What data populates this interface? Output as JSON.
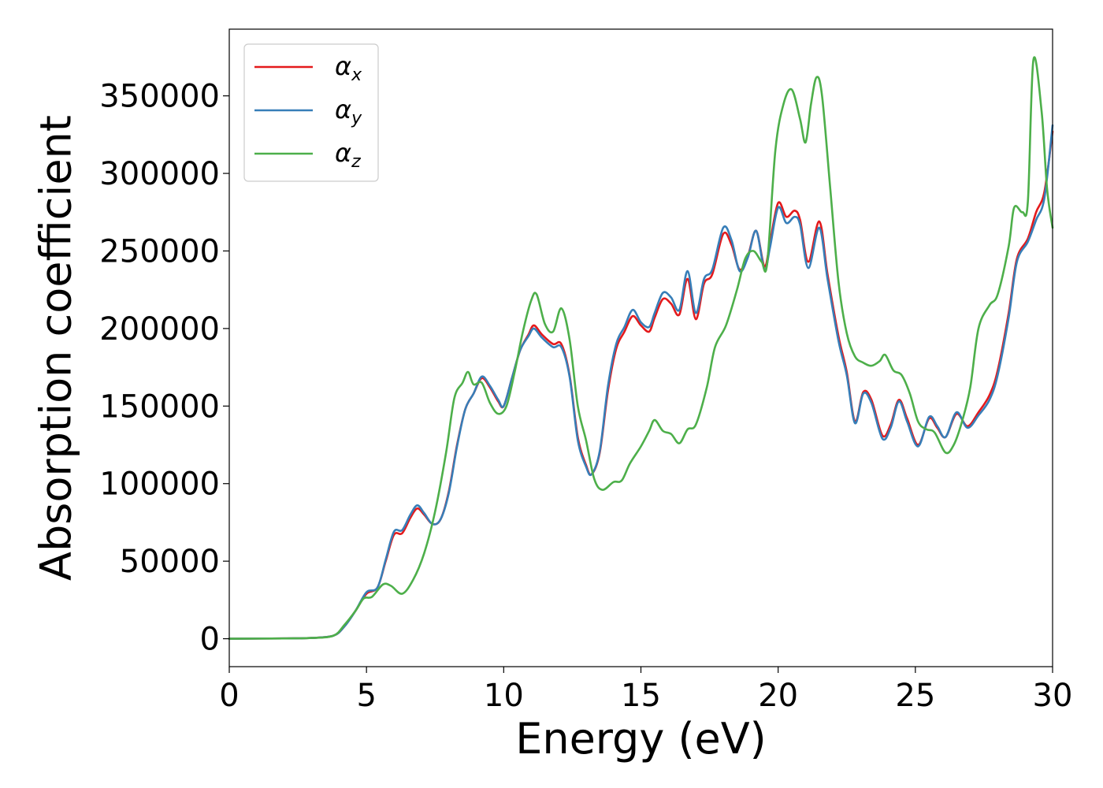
{
  "chart_data": {
    "type": "line",
    "title": "",
    "xlabel": "Energy (eV)",
    "ylabel": "Absorption coefficient",
    "xlim": [
      0,
      30
    ],
    "ylim": [
      -18000,
      393000
    ],
    "xticks": [
      0,
      5,
      10,
      15,
      20,
      25,
      30
    ],
    "yticks": [
      0,
      50000,
      100000,
      150000,
      200000,
      250000,
      300000,
      350000
    ],
    "grid": false,
    "legend_position": "top-left",
    "series": [
      {
        "name": "α_x",
        "label_main": "α",
        "label_sub": "x",
        "color": "#e41a1c",
        "points": [
          [
            0,
            0
          ],
          [
            2,
            200
          ],
          [
            3,
            500
          ],
          [
            3.8,
            2000
          ],
          [
            4.2,
            8000
          ],
          [
            4.6,
            18000
          ],
          [
            5,
            29000
          ],
          [
            5.4,
            33000
          ],
          [
            5.7,
            50000
          ],
          [
            6,
            67000
          ],
          [
            6.3,
            68000
          ],
          [
            6.6,
            78000
          ],
          [
            6.85,
            84000
          ],
          [
            7.1,
            80000
          ],
          [
            7.4,
            74000
          ],
          [
            7.7,
            77000
          ],
          [
            8,
            95000
          ],
          [
            8.3,
            125000
          ],
          [
            8.6,
            148000
          ],
          [
            8.9,
            158000
          ],
          [
            9.2,
            168000
          ],
          [
            9.5,
            162000
          ],
          [
            9.8,
            153000
          ],
          [
            10,
            150000
          ],
          [
            10.3,
            168000
          ],
          [
            10.6,
            186000
          ],
          [
            10.9,
            196000
          ],
          [
            11.1,
            202000
          ],
          [
            11.4,
            196000
          ],
          [
            11.8,
            190000
          ],
          [
            12.1,
            190000
          ],
          [
            12.4,
            170000
          ],
          [
            12.7,
            130000
          ],
          [
            13,
            112000
          ],
          [
            13.2,
            106000
          ],
          [
            13.5,
            120000
          ],
          [
            13.8,
            160000
          ],
          [
            14.1,
            187000
          ],
          [
            14.4,
            198000
          ],
          [
            14.7,
            208000
          ],
          [
            15,
            202000
          ],
          [
            15.3,
            198000
          ],
          [
            15.5,
            207000
          ],
          [
            15.8,
            219000
          ],
          [
            16.1,
            216000
          ],
          [
            16.4,
            209000
          ],
          [
            16.7,
            232000
          ],
          [
            17,
            206000
          ],
          [
            17.3,
            229000
          ],
          [
            17.6,
            235000
          ],
          [
            18,
            261000
          ],
          [
            18.3,
            254000
          ],
          [
            18.6,
            238000
          ],
          [
            18.9,
            247000
          ],
          [
            19.2,
            263000
          ],
          [
            19.5,
            240000
          ],
          [
            19.7,
            255000
          ],
          [
            20,
            281000
          ],
          [
            20.3,
            272000
          ],
          [
            20.6,
            276000
          ],
          [
            20.8,
            270000
          ],
          [
            21.1,
            243000
          ],
          [
            21.5,
            269000
          ],
          [
            21.8,
            235000
          ],
          [
            22.2,
            195000
          ],
          [
            22.5,
            172000
          ],
          [
            22.8,
            140000
          ],
          [
            23.1,
            159000
          ],
          [
            23.4,
            154000
          ],
          [
            23.8,
            131000
          ],
          [
            24.1,
            138000
          ],
          [
            24.4,
            154000
          ],
          [
            24.7,
            142000
          ],
          [
            25.1,
            125000
          ],
          [
            25.5,
            142000
          ],
          [
            25.8,
            136000
          ],
          [
            26.1,
            130000
          ],
          [
            26.5,
            145000
          ],
          [
            26.9,
            137000
          ],
          [
            27.3,
            146000
          ],
          [
            27.7,
            157000
          ],
          [
            28,
            173000
          ],
          [
            28.4,
            210000
          ],
          [
            28.7,
            245000
          ],
          [
            29.1,
            258000
          ],
          [
            29.4,
            275000
          ],
          [
            29.7,
            288000
          ],
          [
            30,
            327000
          ]
        ]
      },
      {
        "name": "α_y",
        "label_main": "α",
        "label_sub": "y",
        "color": "#377eb8",
        "points": [
          [
            0,
            0
          ],
          [
            2,
            200
          ],
          [
            3,
            500
          ],
          [
            3.8,
            2000
          ],
          [
            4.2,
            8000
          ],
          [
            4.6,
            18000
          ],
          [
            5,
            30000
          ],
          [
            5.4,
            33000
          ],
          [
            5.7,
            51000
          ],
          [
            6,
            69000
          ],
          [
            6.3,
            70000
          ],
          [
            6.6,
            80000
          ],
          [
            6.85,
            86000
          ],
          [
            7.1,
            81000
          ],
          [
            7.4,
            74000
          ],
          [
            7.7,
            77000
          ],
          [
            8,
            94000
          ],
          [
            8.3,
            124000
          ],
          [
            8.6,
            148000
          ],
          [
            8.9,
            158000
          ],
          [
            9.2,
            169000
          ],
          [
            9.5,
            163000
          ],
          [
            9.8,
            154000
          ],
          [
            10,
            150000
          ],
          [
            10.3,
            168000
          ],
          [
            10.6,
            186000
          ],
          [
            10.9,
            195000
          ],
          [
            11.1,
            200000
          ],
          [
            11.4,
            194000
          ],
          [
            11.8,
            188000
          ],
          [
            12.1,
            188000
          ],
          [
            12.4,
            169000
          ],
          [
            12.7,
            128000
          ],
          [
            13,
            111000
          ],
          [
            13.2,
            106000
          ],
          [
            13.5,
            121000
          ],
          [
            13.8,
            163000
          ],
          [
            14.1,
            190000
          ],
          [
            14.4,
            201000
          ],
          [
            14.7,
            212000
          ],
          [
            15,
            204000
          ],
          [
            15.3,
            201000
          ],
          [
            15.5,
            210000
          ],
          [
            15.8,
            223000
          ],
          [
            16.1,
            220000
          ],
          [
            16.4,
            212000
          ],
          [
            16.7,
            237000
          ],
          [
            17,
            210000
          ],
          [
            17.3,
            232000
          ],
          [
            17.6,
            238000
          ],
          [
            18,
            265000
          ],
          [
            18.3,
            257000
          ],
          [
            18.6,
            237000
          ],
          [
            18.9,
            246000
          ],
          [
            19.2,
            263000
          ],
          [
            19.5,
            238000
          ],
          [
            19.7,
            252000
          ],
          [
            20,
            278000
          ],
          [
            20.3,
            268000
          ],
          [
            20.6,
            272000
          ],
          [
            20.8,
            267000
          ],
          [
            21.1,
            239000
          ],
          [
            21.5,
            265000
          ],
          [
            21.8,
            232000
          ],
          [
            22.2,
            192000
          ],
          [
            22.5,
            170000
          ],
          [
            22.8,
            139000
          ],
          [
            23.1,
            158000
          ],
          [
            23.4,
            152000
          ],
          [
            23.8,
            129000
          ],
          [
            24.1,
            136000
          ],
          [
            24.4,
            153000
          ],
          [
            24.7,
            140000
          ],
          [
            25.1,
            124000
          ],
          [
            25.5,
            143000
          ],
          [
            25.8,
            137000
          ],
          [
            26.1,
            130000
          ],
          [
            26.5,
            146000
          ],
          [
            26.9,
            136000
          ],
          [
            27.3,
            144000
          ],
          [
            27.7,
            154000
          ],
          [
            28,
            170000
          ],
          [
            28.4,
            207000
          ],
          [
            28.7,
            243000
          ],
          [
            29.1,
            256000
          ],
          [
            29.4,
            270000
          ],
          [
            29.7,
            284000
          ],
          [
            30,
            331000
          ]
        ]
      },
      {
        "name": "α_z",
        "label_main": "α",
        "label_sub": "z",
        "color": "#4daf4a",
        "points": [
          [
            0,
            0
          ],
          [
            2,
            200
          ],
          [
            3,
            500
          ],
          [
            3.8,
            2000
          ],
          [
            4.2,
            9000
          ],
          [
            4.6,
            18000
          ],
          [
            4.9,
            26000
          ],
          [
            5.2,
            27000
          ],
          [
            5.6,
            35000
          ],
          [
            5.9,
            34000
          ],
          [
            6.3,
            29000
          ],
          [
            6.7,
            38000
          ],
          [
            7.1,
            55000
          ],
          [
            7.5,
            82000
          ],
          [
            7.9,
            120000
          ],
          [
            8.2,
            155000
          ],
          [
            8.5,
            165000
          ],
          [
            8.7,
            172000
          ],
          [
            8.9,
            164000
          ],
          [
            9.2,
            165000
          ],
          [
            9.5,
            152000
          ],
          [
            9.8,
            145000
          ],
          [
            10.1,
            150000
          ],
          [
            10.4,
            172000
          ],
          [
            10.7,
            198000
          ],
          [
            11,
            218000
          ],
          [
            11.2,
            222000
          ],
          [
            11.5,
            203000
          ],
          [
            11.8,
            198000
          ],
          [
            12.1,
            213000
          ],
          [
            12.4,
            193000
          ],
          [
            12.7,
            150000
          ],
          [
            13,
            128000
          ],
          [
            13.3,
            103000
          ],
          [
            13.6,
            96000
          ],
          [
            14,
            101000
          ],
          [
            14.3,
            102000
          ],
          [
            14.6,
            113000
          ],
          [
            15,
            124000
          ],
          [
            15.3,
            134000
          ],
          [
            15.5,
            141000
          ],
          [
            15.8,
            134000
          ],
          [
            16.1,
            132000
          ],
          [
            16.4,
            126000
          ],
          [
            16.7,
            135000
          ],
          [
            17,
            138000
          ],
          [
            17.4,
            162000
          ],
          [
            17.7,
            188000
          ],
          [
            18.1,
            202000
          ],
          [
            18.5,
            225000
          ],
          [
            18.8,
            245000
          ],
          [
            19.1,
            250000
          ],
          [
            19.4,
            243000
          ],
          [
            19.6,
            242000
          ],
          [
            19.9,
            315000
          ],
          [
            20.2,
            345000
          ],
          [
            20.5,
            354000
          ],
          [
            20.8,
            335000
          ],
          [
            21,
            320000
          ],
          [
            21.2,
            345000
          ],
          [
            21.4,
            362000
          ],
          [
            21.6,
            350000
          ],
          [
            21.9,
            290000
          ],
          [
            22.2,
            230000
          ],
          [
            22.5,
            197000
          ],
          [
            22.8,
            182000
          ],
          [
            23.1,
            178000
          ],
          [
            23.4,
            176000
          ],
          [
            23.7,
            179000
          ],
          [
            23.9,
            183000
          ],
          [
            24.2,
            173000
          ],
          [
            24.5,
            170000
          ],
          [
            24.8,
            158000
          ],
          [
            25.1,
            140000
          ],
          [
            25.4,
            135000
          ],
          [
            25.7,
            133000
          ],
          [
            26.1,
            120000
          ],
          [
            26.4,
            125000
          ],
          [
            26.7,
            140000
          ],
          [
            27,
            162000
          ],
          [
            27.3,
            200000
          ],
          [
            27.7,
            215000
          ],
          [
            28,
            222000
          ],
          [
            28.4,
            253000
          ],
          [
            28.6,
            278000
          ],
          [
            28.9,
            275000
          ],
          [
            29.1,
            282000
          ],
          [
            29.3,
            373000
          ],
          [
            29.6,
            340000
          ],
          [
            29.8,
            290000
          ],
          [
            30,
            265000
          ]
        ]
      }
    ]
  }
}
